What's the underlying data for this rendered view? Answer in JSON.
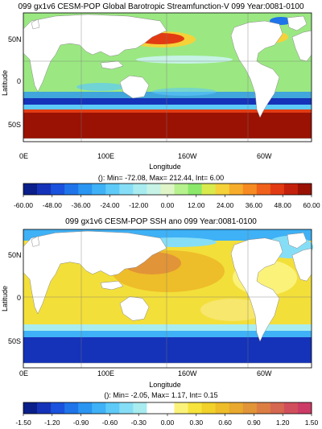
{
  "chart_data": [
    {
      "type": "heatmap",
      "title": "099 gx1v6 CESM-POP Global Barotropic Streamfunction-V 099 Year:0081-0100",
      "xlabel": "Longitude",
      "ylabel": "Latitude",
      "x_ticks": [
        "0E",
        "100E",
        "160W",
        "60W"
      ],
      "y_ticks": [
        "50N",
        "0",
        "50S"
      ],
      "stats": "(): Min= -72.08, Max= 212.44, Int= 6.00",
      "colorbar": {
        "labels": [
          "-60.00",
          "-48.00",
          "-36.00",
          "-24.00",
          "-12.00",
          "0.00",
          "12.00",
          "24.00",
          "36.00",
          "48.00",
          "60.00"
        ],
        "colors": [
          "#0b1f8a",
          "#1533b8",
          "#1a52dd",
          "#1f74ea",
          "#2b95f2",
          "#3fb1f6",
          "#5ecaf8",
          "#86def6",
          "#a8ecf0",
          "#c6f3e6",
          "#dff5c8",
          "#b6f28d",
          "#8be86b",
          "#d9ea4d",
          "#f5d23a",
          "#f7ad2c",
          "#f68a23",
          "#f0611b",
          "#e23b13",
          "#c4210c",
          "#9a1204"
        ]
      },
      "grid": true
    },
    {
      "type": "heatmap",
      "title": "099 gx1v6 CESM-POP SSH ano 099 Year:0081-0100",
      "xlabel": "Longitude",
      "ylabel": "Latitude",
      "x_ticks": [
        "0E",
        "100E",
        "160W",
        "60W"
      ],
      "y_ticks": [
        "50N",
        "0",
        "50S"
      ],
      "stats": "(): Min= -2.05, Max= 1.17, Int= 0.15",
      "colorbar": {
        "labels": [
          "-1.50",
          "-1.20",
          "-0.90",
          "-0.60",
          "-0.30",
          "0.00",
          "0.30",
          "0.60",
          "0.90",
          "1.20",
          "1.50"
        ],
        "colors": [
          "#0b1f8a",
          "#1533b8",
          "#1a52dd",
          "#1f74ea",
          "#2b95f2",
          "#3fb1f6",
          "#5ecaf8",
          "#86def6",
          "#a8ecf0",
          "#ffffff",
          "#ffffff",
          "#fbf27a",
          "#f6e33c",
          "#f1d12a",
          "#eebd2a",
          "#e8a92e",
          "#e29438",
          "#dc7e44",
          "#d66750",
          "#d14f5c",
          "#cc3b66"
        ]
      },
      "grid": true
    }
  ]
}
